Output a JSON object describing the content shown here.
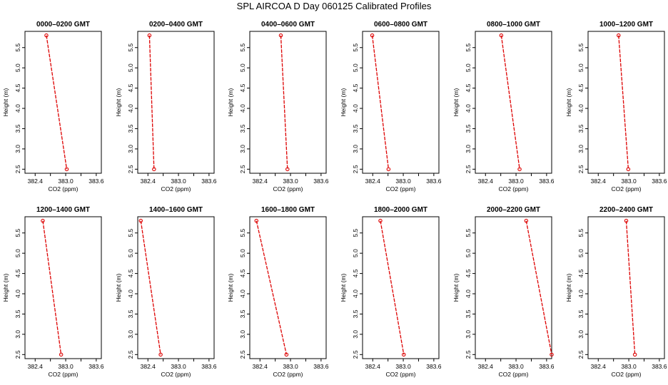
{
  "title": "SPL AIRCOA D  Day 060125  Calibrated Profiles",
  "colors": {
    "series": "#dd0000",
    "axis": "#000000"
  },
  "chart_data": [
    {
      "type": "line",
      "title": "0000–0200 GMT",
      "xlabel": "CO2 (ppm)",
      "ylabel": "Height (m)",
      "xlim": [
        382.2,
        383.7
      ],
      "ylim": [
        2.4,
        5.9
      ],
      "x_ticks": [
        "382.4",
        "383.0",
        "383.6"
      ],
      "y_ticks": [
        "2.5",
        "3.0",
        "3.5",
        "4.0",
        "4.5",
        "5.0",
        "5.5"
      ],
      "series": [
        {
          "x": [
            382.62,
            383.02
          ],
          "y": [
            5.8,
            2.5
          ]
        }
      ]
    },
    {
      "type": "line",
      "title": "0200–0400 GMT",
      "xlabel": "CO2 (ppm)",
      "ylabel": "Height (m)",
      "xlim": [
        382.2,
        383.7
      ],
      "ylim": [
        2.4,
        5.9
      ],
      "x_ticks": [
        "382.4",
        "383.0",
        "383.6"
      ],
      "y_ticks": [
        "2.5",
        "3.0",
        "3.5",
        "4.0",
        "4.5",
        "5.0",
        "5.5"
      ],
      "series": [
        {
          "x": [
            382.43,
            382.52
          ],
          "y": [
            5.8,
            2.5
          ]
        }
      ]
    },
    {
      "type": "line",
      "title": "0400–0600 GMT",
      "xlabel": "CO2 (ppm)",
      "ylabel": "Height (m)",
      "xlim": [
        382.2,
        383.7
      ],
      "ylim": [
        2.4,
        5.9
      ],
      "x_ticks": [
        "382.4",
        "383.0",
        "383.6"
      ],
      "y_ticks": [
        "2.5",
        "3.0",
        "3.5",
        "4.0",
        "4.5",
        "5.0",
        "5.5"
      ],
      "series": [
        {
          "x": [
            382.81,
            382.94
          ],
          "y": [
            5.8,
            2.5
          ]
        }
      ]
    },
    {
      "type": "line",
      "title": "0600–0800 GMT",
      "xlabel": "CO2 (ppm)",
      "ylabel": "Height (m)",
      "xlim": [
        382.2,
        383.7
      ],
      "ylim": [
        2.4,
        5.9
      ],
      "x_ticks": [
        "382.4",
        "383.0",
        "383.6"
      ],
      "y_ticks": [
        "2.5",
        "3.0",
        "3.5",
        "4.0",
        "4.5",
        "5.0",
        "5.5"
      ],
      "series": [
        {
          "x": [
            382.39,
            382.71
          ],
          "y": [
            5.8,
            2.5
          ]
        }
      ]
    },
    {
      "type": "line",
      "title": "0800–1000 GMT",
      "xlabel": "CO2 (ppm)",
      "ylabel": "Height (m)",
      "xlim": [
        382.2,
        383.7
      ],
      "ylim": [
        2.4,
        5.9
      ],
      "x_ticks": [
        "382.4",
        "383.0",
        "383.6"
      ],
      "y_ticks": [
        "2.5",
        "3.0",
        "3.5",
        "4.0",
        "4.5",
        "5.0",
        "5.5"
      ],
      "series": [
        {
          "x": [
            382.71,
            383.07
          ],
          "y": [
            5.8,
            2.5
          ]
        }
      ]
    },
    {
      "type": "line",
      "title": "1000–1200 GMT",
      "xlabel": "CO2 (ppm)",
      "ylabel": "Height (m)",
      "xlim": [
        382.2,
        383.7
      ],
      "ylim": [
        2.4,
        5.9
      ],
      "x_ticks": [
        "382.4",
        "383.0",
        "383.6"
      ],
      "y_ticks": [
        "2.5",
        "3.0",
        "3.5",
        "4.0",
        "4.5",
        "5.0",
        "5.5"
      ],
      "series": [
        {
          "x": [
            382.8,
            382.99
          ],
          "y": [
            5.8,
            2.5
          ]
        }
      ]
    },
    {
      "type": "line",
      "title": "1200–1400 GMT",
      "xlabel": "CO2 (ppm)",
      "ylabel": "Height (m)",
      "xlim": [
        382.2,
        383.7
      ],
      "ylim": [
        2.4,
        5.9
      ],
      "x_ticks": [
        "382.4",
        "383.0",
        "383.6"
      ],
      "y_ticks": [
        "2.5",
        "3.0",
        "3.5",
        "4.0",
        "4.5",
        "5.0",
        "5.5"
      ],
      "series": [
        {
          "x": [
            382.55,
            382.91
          ],
          "y": [
            5.8,
            2.5
          ]
        }
      ]
    },
    {
      "type": "line",
      "title": "1400–1600 GMT",
      "xlabel": "CO2 (ppm)",
      "ylabel": "Height (m)",
      "xlim": [
        382.2,
        383.7
      ],
      "ylim": [
        2.4,
        5.9
      ],
      "x_ticks": [
        "382.4",
        "383.0",
        "383.6"
      ],
      "y_ticks": [
        "2.5",
        "3.0",
        "3.5",
        "4.0",
        "4.5",
        "5.0",
        "5.5"
      ],
      "series": [
        {
          "x": [
            382.26,
            382.65
          ],
          "y": [
            5.8,
            2.5
          ]
        }
      ]
    },
    {
      "type": "line",
      "title": "1600–1800 GMT",
      "xlabel": "CO2 (ppm)",
      "ylabel": "Height (m)",
      "xlim": [
        382.2,
        383.7
      ],
      "ylim": [
        2.4,
        5.9
      ],
      "x_ticks": [
        "382.4",
        "383.0",
        "383.6"
      ],
      "y_ticks": [
        "2.5",
        "3.0",
        "3.5",
        "4.0",
        "4.5",
        "5.0",
        "5.5"
      ],
      "series": [
        {
          "x": [
            382.33,
            382.92
          ],
          "y": [
            5.8,
            2.5
          ]
        }
      ]
    },
    {
      "type": "line",
      "title": "1800–2000 GMT",
      "xlabel": "CO2 (ppm)",
      "ylabel": "Height (m)",
      "xlim": [
        382.2,
        383.7
      ],
      "ylim": [
        2.4,
        5.9
      ],
      "x_ticks": [
        "382.4",
        "383.0",
        "383.6"
      ],
      "y_ticks": [
        "2.5",
        "3.0",
        "3.5",
        "4.0",
        "4.5",
        "5.0",
        "5.5"
      ],
      "series": [
        {
          "x": [
            382.55,
            383.01
          ],
          "y": [
            5.8,
            2.5
          ]
        }
      ]
    },
    {
      "type": "line",
      "title": "2000–2200 GMT",
      "xlabel": "CO2 (ppm)",
      "ylabel": "Height (m)",
      "xlim": [
        382.2,
        383.7
      ],
      "ylim": [
        2.4,
        5.9
      ],
      "x_ticks": [
        "382.4",
        "383.0",
        "383.6"
      ],
      "y_ticks": [
        "2.5",
        "3.0",
        "3.5",
        "4.0",
        "4.5",
        "5.0",
        "5.5"
      ],
      "series": [
        {
          "x": [
            383.2,
            383.7
          ],
          "y": [
            5.8,
            2.5
          ]
        }
      ]
    },
    {
      "type": "line",
      "title": "2200–2400 GMT",
      "xlabel": "CO2 (ppm)",
      "ylabel": "Height (m)",
      "xlim": [
        382.2,
        383.7
      ],
      "ylim": [
        2.4,
        5.9
      ],
      "x_ticks": [
        "382.4",
        "383.0",
        "383.6"
      ],
      "y_ticks": [
        "2.5",
        "3.0",
        "3.5",
        "4.0",
        "4.5",
        "5.0",
        "5.5"
      ],
      "series": [
        {
          "x": [
            382.95,
            383.12
          ],
          "y": [
            5.8,
            2.5
          ]
        }
      ]
    }
  ]
}
